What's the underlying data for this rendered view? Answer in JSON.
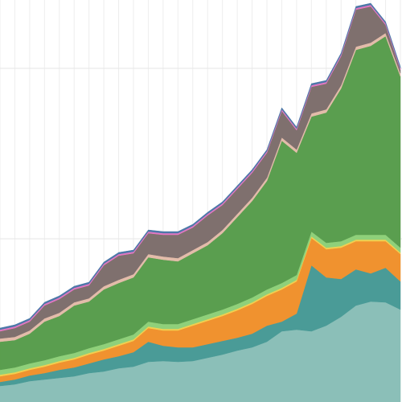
{
  "chart_data": {
    "type": "stacked-area",
    "categories": [
      null,
      null,
      null,
      null,
      null,
      null,
      null,
      null,
      null,
      null,
      null,
      null,
      null,
      null,
      null,
      null,
      null,
      null,
      null,
      null,
      null,
      null,
      null,
      null,
      null,
      null,
      null,
      null
    ],
    "ylim": [
      0,
      500
    ],
    "yticks": [
      203,
      415
    ],
    "grid": true,
    "series": [
      {
        "color": "#8bbfb8",
        "values": [
          20,
          22,
          26,
          28,
          30,
          32,
          36,
          38,
          42,
          44,
          50,
          51,
          50,
          51,
          55,
          59,
          64,
          68,
          75,
          88,
          90,
          88,
          95,
          106,
          120,
          125,
          124,
          115
        ]
      },
      {
        "color": "#4a9b97",
        "values": [
          5,
          6,
          7,
          8,
          10,
          11,
          12,
          15,
          15,
          18,
          25,
          19,
          18,
          17,
          17,
          17,
          16,
          17,
          20,
          12,
          20,
          82,
          60,
          47,
          45,
          35,
          43,
          35
        ]
      },
      {
        "color": "#f0922f",
        "values": [
          7,
          7,
          7,
          8,
          9,
          10,
          11,
          11,
          13,
          14,
          17,
          19,
          21,
          27,
          29,
          31,
          34,
          37,
          37,
          40,
          40,
          34,
          35,
          39,
          35,
          40,
          33,
          34
        ]
      },
      {
        "color": "#f2cf4f",
        "values": [
          2,
          2,
          2,
          2,
          2,
          2,
          2,
          2,
          2,
          2,
          2,
          2,
          2,
          2,
          2,
          2,
          2,
          2,
          2,
          2,
          2,
          2,
          2,
          2,
          2,
          2,
          2,
          2
        ]
      },
      {
        "color": "#8fd07a",
        "values": [
          6,
          6,
          6,
          6,
          6,
          6,
          6,
          6,
          6,
          6,
          6,
          6,
          6,
          6,
          6,
          6,
          6,
          6,
          6,
          6,
          6,
          6,
          6,
          6,
          6,
          6,
          6,
          6
        ]
      },
      {
        "color": "#5a9e4f",
        "values": [
          35,
          34,
          37,
          48,
          50,
          59,
          58,
          68,
          70,
          71,
          80,
          80,
          78,
          82,
          86,
          95,
          108,
          120,
          135,
          177,
          152,
          143,
          162,
          190,
          230,
          235,
          247,
          213
        ]
      },
      {
        "color": "#e3bcaa",
        "values": [
          4,
          4,
          4,
          4,
          4,
          4,
          4,
          4,
          4,
          4,
          4,
          4,
          4,
          4,
          4,
          4,
          4,
          4,
          4,
          4,
          4,
          4,
          4,
          4,
          4,
          4,
          4,
          4
        ]
      },
      {
        "color": "#7f706e",
        "values": [
          9,
          11,
          11,
          16,
          17,
          16,
          16,
          26,
          30,
          26,
          26,
          27,
          29,
          28,
          33,
          31,
          31,
          31,
          31,
          33,
          24,
          33,
          32,
          36,
          46,
          45,
          10,
          4
        ]
      },
      {
        "color": "#e377c2",
        "values": [
          2,
          2,
          2,
          2,
          2,
          2,
          2,
          2,
          2,
          2,
          2,
          2,
          2,
          2,
          2,
          2,
          2,
          2,
          2,
          2,
          2,
          2,
          2,
          2,
          2,
          2,
          2,
          2
        ]
      },
      {
        "color": "#4c78a8",
        "values": [
          2,
          2,
          2,
          2,
          2,
          2,
          2,
          2,
          2,
          2,
          2,
          2,
          2,
          2,
          2,
          2,
          2,
          2,
          2,
          2,
          2,
          2,
          2,
          2,
          2,
          2,
          2,
          2
        ]
      }
    ]
  }
}
